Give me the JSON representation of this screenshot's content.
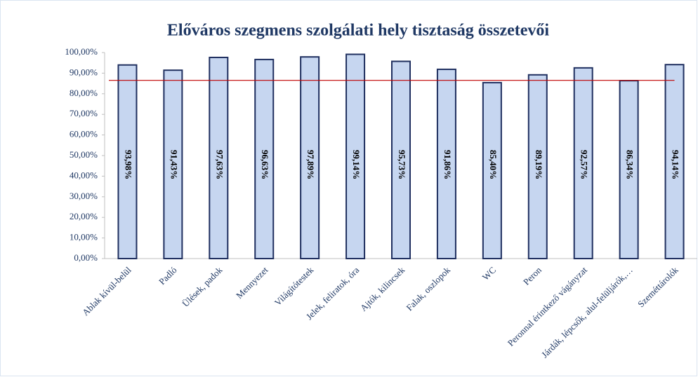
{
  "chart_data": {
    "type": "bar",
    "title": "Előváros szegmens szolgálati hely tisztaság összetevői",
    "categories": [
      "Ablak kívül-belül",
      "Padló",
      "Ülések, padok",
      "Mennyezet",
      "Világítótestek",
      "Jelek, feliratok, óra",
      "Ajtók, kilincsek",
      "Falak, oszlopok",
      "WC",
      "Peron",
      "Peronnal érintkező vágányzat",
      "Járdák, lépcsők, alul-felüljárók,…",
      "Szeméttárolók"
    ],
    "values": [
      93.98,
      91.43,
      97.63,
      96.63,
      97.89,
      99.14,
      95.73,
      91.86,
      85.4,
      89.19,
      92.57,
      86.34,
      94.14
    ],
    "value_labels": [
      "93,98%",
      "91,43%",
      "97,63%",
      "96,63%",
      "97,89%",
      "99,14%",
      "95,73%",
      "91,86%",
      "85,40%",
      "89,19%",
      "92,57%",
      "86,34%",
      "94,14%"
    ],
    "color": "#c6d6f0",
    "edge_color": "#1f2f5f",
    "reference_line": {
      "value": 86.5,
      "color": "#c00000"
    },
    "ylim": [
      0,
      100
    ],
    "yticks": [
      {
        "value": 0,
        "label": "0,00%"
      },
      {
        "value": 10,
        "label": "10,00%"
      },
      {
        "value": 20,
        "label": "20,00%"
      },
      {
        "value": 30,
        "label": "30,00%"
      },
      {
        "value": 40,
        "label": "40,00%"
      },
      {
        "value": 50,
        "label": "50,00%"
      },
      {
        "value": 60,
        "label": "60,00%"
      },
      {
        "value": 70,
        "label": "70,00%"
      },
      {
        "value": 80,
        "label": "80,00%"
      },
      {
        "value": 90,
        "label": "90,00%"
      },
      {
        "value": 100,
        "label": "100,00%"
      }
    ],
    "grid": false
  }
}
